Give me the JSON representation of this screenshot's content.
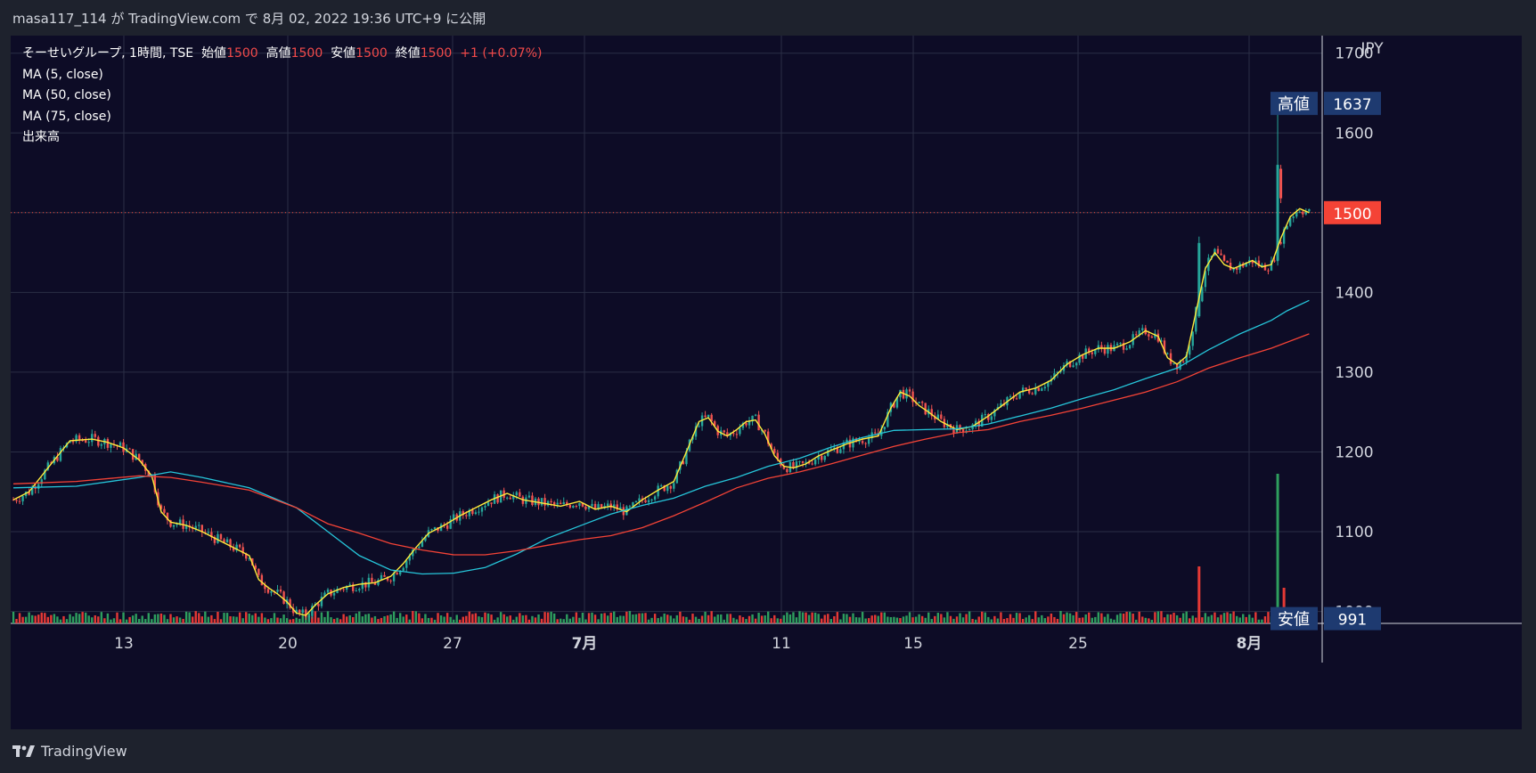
{
  "header": {
    "published": "masa117_114 が TradingView.com で 8月 02, 2022 19:36 UTC+9 に公開"
  },
  "legend": {
    "symbol": "そーせいグループ, 1時間, TSE",
    "open_label": "始値",
    "open_value": "1500",
    "high_label": "高値",
    "high_value": "1500",
    "low_label": "安値",
    "low_value": "1500",
    "close_label": "終値",
    "close_value": "1500",
    "change": "+1 (+0.07%)",
    "indicators": [
      "MA (5, close)",
      "MA (50, close)",
      "MA (75, close)",
      "出来高"
    ]
  },
  "footer": {
    "brand": "TradingView"
  },
  "chart_data": {
    "type": "candlestick",
    "currency": "JPY",
    "y_axis": {
      "ticks": [
        1000,
        1100,
        1200,
        1300,
        1400,
        1500,
        1600,
        1700
      ],
      "tick_labels": [
        "1000",
        "1100",
        "1200",
        "1300",
        "1400",
        "1500",
        "1600",
        "1700"
      ],
      "range": [
        985,
        1722
      ]
    },
    "x_axis": {
      "labels": [
        "13",
        "20",
        "27",
        "7月",
        "11",
        "15",
        "25",
        "8月"
      ],
      "bold_labels": [
        "7月",
        "8月"
      ]
    },
    "price_markers": {
      "high": {
        "label": "高値",
        "value": 1637
      },
      "low": {
        "label": "安値",
        "value": 991
      },
      "last": {
        "value": 1500
      }
    },
    "series": [
      {
        "name": "MA (5, close)",
        "color": "#ffeb3b",
        "points": [
          [
            0,
            1140
          ],
          [
            5,
            1150
          ],
          [
            12,
            1185
          ],
          [
            18,
            1214
          ],
          [
            25,
            1216
          ],
          [
            30,
            1212
          ],
          [
            35,
            1205
          ],
          [
            40,
            1190
          ],
          [
            44,
            1170
          ],
          [
            47,
            1125
          ],
          [
            50,
            1112
          ],
          [
            55,
            1108
          ],
          [
            60,
            1100
          ],
          [
            65,
            1090
          ],
          [
            70,
            1080
          ],
          [
            75,
            1070
          ],
          [
            78,
            1040
          ],
          [
            81,
            1030
          ],
          [
            84,
            1022
          ],
          [
            87,
            1012
          ],
          [
            90,
            998
          ],
          [
            93,
            995
          ],
          [
            96,
            1008
          ],
          [
            100,
            1022
          ],
          [
            105,
            1030
          ],
          [
            110,
            1034
          ],
          [
            115,
            1036
          ],
          [
            120,
            1044
          ],
          [
            124,
            1060
          ],
          [
            128,
            1080
          ],
          [
            132,
            1098
          ],
          [
            137,
            1108
          ],
          [
            142,
            1120
          ],
          [
            147,
            1130
          ],
          [
            152,
            1140
          ],
          [
            157,
            1148
          ],
          [
            162,
            1140
          ],
          [
            168,
            1136
          ],
          [
            174,
            1132
          ],
          [
            180,
            1138
          ],
          [
            185,
            1128
          ],
          [
            190,
            1132
          ],
          [
            195,
            1125
          ],
          [
            200,
            1140
          ],
          [
            205,
            1152
          ],
          [
            210,
            1163
          ],
          [
            214,
            1200
          ],
          [
            218,
            1238
          ],
          [
            221,
            1243
          ],
          [
            224,
            1226
          ],
          [
            227,
            1220
          ],
          [
            230,
            1228
          ],
          [
            233,
            1238
          ],
          [
            236,
            1240
          ],
          [
            239,
            1222
          ],
          [
            242,
            1195
          ],
          [
            245,
            1182
          ],
          [
            248,
            1180
          ],
          [
            252,
            1185
          ],
          [
            256,
            1195
          ],
          [
            260,
            1202
          ],
          [
            265,
            1210
          ],
          [
            270,
            1216
          ],
          [
            275,
            1220
          ],
          [
            279,
            1255
          ],
          [
            282,
            1275
          ],
          [
            285,
            1270
          ],
          [
            288,
            1258
          ],
          [
            291,
            1250
          ],
          [
            295,
            1238
          ],
          [
            300,
            1228
          ],
          [
            305,
            1232
          ],
          [
            310,
            1245
          ],
          [
            315,
            1260
          ],
          [
            320,
            1275
          ],
          [
            325,
            1280
          ],
          [
            330,
            1290
          ],
          [
            335,
            1310
          ],
          [
            340,
            1322
          ],
          [
            345,
            1330
          ],
          [
            350,
            1330
          ],
          [
            355,
            1338
          ],
          [
            360,
            1352
          ],
          [
            364,
            1345
          ],
          [
            367,
            1318
          ],
          [
            370,
            1310
          ],
          [
            373,
            1320
          ],
          [
            376,
            1375
          ],
          [
            379,
            1430
          ],
          [
            382,
            1450
          ],
          [
            385,
            1435
          ],
          [
            388,
            1430
          ],
          [
            391,
            1435
          ],
          [
            394,
            1440
          ],
          [
            397,
            1432
          ],
          [
            400,
            1435
          ],
          [
            403,
            1468
          ],
          [
            406,
            1495
          ],
          [
            409,
            1505
          ],
          [
            412,
            1500
          ]
        ]
      },
      {
        "name": "MA (50, close)",
        "color": "#26c6da",
        "points": [
          [
            0,
            1155
          ],
          [
            20,
            1157
          ],
          [
            40,
            1168
          ],
          [
            50,
            1175
          ],
          [
            60,
            1168
          ],
          [
            75,
            1155
          ],
          [
            90,
            1130
          ],
          [
            100,
            1100
          ],
          [
            110,
            1070
          ],
          [
            120,
            1052
          ],
          [
            130,
            1047
          ],
          [
            140,
            1048
          ],
          [
            150,
            1055
          ],
          [
            160,
            1072
          ],
          [
            170,
            1092
          ],
          [
            180,
            1107
          ],
          [
            190,
            1122
          ],
          [
            200,
            1133
          ],
          [
            210,
            1142
          ],
          [
            220,
            1157
          ],
          [
            230,
            1168
          ],
          [
            240,
            1182
          ],
          [
            250,
            1192
          ],
          [
            260,
            1206
          ],
          [
            270,
            1218
          ],
          [
            280,
            1227
          ],
          [
            290,
            1228
          ],
          [
            300,
            1229
          ],
          [
            310,
            1235
          ],
          [
            320,
            1245
          ],
          [
            330,
            1255
          ],
          [
            340,
            1267
          ],
          [
            350,
            1278
          ],
          [
            360,
            1292
          ],
          [
            370,
            1305
          ],
          [
            380,
            1328
          ],
          [
            390,
            1348
          ],
          [
            400,
            1365
          ],
          [
            405,
            1377
          ],
          [
            412,
            1390
          ]
        ]
      },
      {
        "name": "MA (75, close)",
        "color": "#f44336",
        "points": [
          [
            0,
            1160
          ],
          [
            20,
            1163
          ],
          [
            40,
            1170
          ],
          [
            50,
            1168
          ],
          [
            60,
            1162
          ],
          [
            75,
            1152
          ],
          [
            90,
            1130
          ],
          [
            100,
            1110
          ],
          [
            110,
            1098
          ],
          [
            120,
            1085
          ],
          [
            130,
            1077
          ],
          [
            140,
            1071
          ],
          [
            150,
            1071
          ],
          [
            160,
            1076
          ],
          [
            170,
            1083
          ],
          [
            180,
            1090
          ],
          [
            190,
            1095
          ],
          [
            200,
            1105
          ],
          [
            210,
            1120
          ],
          [
            220,
            1137
          ],
          [
            230,
            1155
          ],
          [
            240,
            1167
          ],
          [
            250,
            1175
          ],
          [
            260,
            1185
          ],
          [
            270,
            1196
          ],
          [
            280,
            1207
          ],
          [
            290,
            1216
          ],
          [
            300,
            1224
          ],
          [
            310,
            1228
          ],
          [
            320,
            1238
          ],
          [
            330,
            1246
          ],
          [
            340,
            1255
          ],
          [
            350,
            1265
          ],
          [
            360,
            1275
          ],
          [
            370,
            1288
          ],
          [
            380,
            1305
          ],
          [
            390,
            1318
          ],
          [
            400,
            1330
          ],
          [
            412,
            1348
          ]
        ]
      }
    ],
    "volume_spikes": [
      {
        "bar": 377,
        "value": 8
      },
      {
        "bar": 402,
        "value": 21
      },
      {
        "bar": 404,
        "value": 5
      }
    ]
  },
  "colors": {
    "up": "#26a69a",
    "down": "#ef5350",
    "vol_up": "#2e9e5e",
    "vol_down": "#e53935",
    "background": "#0d0c26",
    "marker": "#1e3a70",
    "last": "#f44336"
  }
}
